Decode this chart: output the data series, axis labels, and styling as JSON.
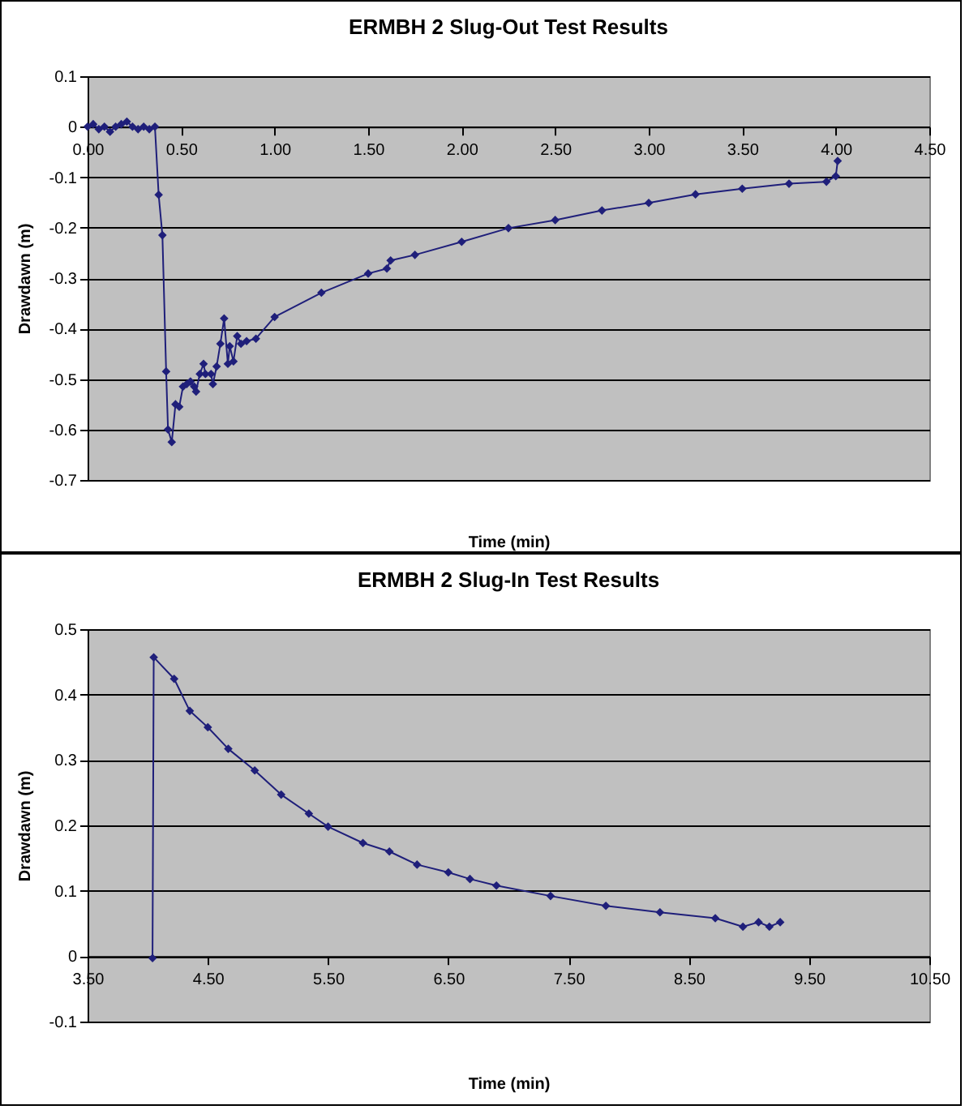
{
  "chart_data": [
    {
      "type": "line",
      "title": "ERMBH 2 Slug-Out Test Results",
      "xlabel": "Time (min)",
      "ylabel": "Drawdawn (m)",
      "x": [
        0,
        0.03,
        0.06,
        0.09,
        0.12,
        0.15,
        0.18,
        0.21,
        0.24,
        0.27,
        0.3,
        0.33,
        0.36,
        0.38,
        0.4,
        0.42,
        0.43,
        0.45,
        0.47,
        0.49,
        0.51,
        0.53,
        0.55,
        0.57,
        0.58,
        0.6,
        0.62,
        0.63,
        0.66,
        0.67,
        0.69,
        0.71,
        0.73,
        0.75,
        0.76,
        0.78,
        0.8,
        0.82,
        0.85,
        0.9,
        1.0,
        1.25,
        1.5,
        1.6,
        1.62,
        1.75,
        2.0,
        2.25,
        2.5,
        2.75,
        3.0,
        3.25,
        3.5,
        3.75,
        3.95,
        4.0,
        4.01
      ],
      "series": [
        {
          "color": "#1f1f7a",
          "values": [
            0.0,
            0.005,
            -0.005,
            0.0,
            -0.01,
            0.0,
            0.005,
            0.01,
            0.0,
            -0.005,
            0.0,
            -0.005,
            0.0,
            -0.135,
            -0.215,
            -0.485,
            -0.6,
            -0.625,
            -0.55,
            -0.555,
            -0.515,
            -0.51,
            -0.505,
            -0.515,
            -0.525,
            -0.49,
            -0.47,
            -0.49,
            -0.49,
            -0.51,
            -0.475,
            -0.43,
            -0.38,
            -0.47,
            -0.435,
            -0.465,
            -0.415,
            -0.43,
            -0.425,
            -0.42,
            -0.377,
            -0.329,
            -0.291,
            -0.281,
            -0.265,
            -0.254,
            -0.228,
            -0.201,
            -0.185,
            -0.166,
            -0.151,
            -0.134,
            -0.123,
            -0.113,
            -0.109,
            -0.098,
            -0.068
          ]
        }
      ],
      "xlim": [
        0,
        4.5
      ],
      "xticks": [
        {
          "value": 0,
          "label": "0.00"
        },
        {
          "value": 0.5,
          "label": "0.50"
        },
        {
          "value": 1,
          "label": "1.00"
        },
        {
          "value": 1.5,
          "label": "1.50"
        },
        {
          "value": 2,
          "label": "2.00"
        },
        {
          "value": 2.5,
          "label": "2.50"
        },
        {
          "value": 3,
          "label": "3.00"
        },
        {
          "value": 3.5,
          "label": "3.50"
        },
        {
          "value": 4,
          "label": "4.00"
        },
        {
          "value": 4.5,
          "label": "4.50"
        }
      ],
      "ylim": [
        -0.7,
        0.1
      ],
      "yticks": [
        -0.7,
        -0.6,
        -0.5,
        -0.4,
        -0.3,
        -0.2,
        -0.1,
        0,
        0.1
      ],
      "grid": "y",
      "marker": "diamond"
    },
    {
      "type": "line",
      "title": "ERMBH 2 Slug-In Test Results",
      "xlabel": "Time (min)",
      "ylabel": "Drawdawn (m)",
      "x": [
        4.04,
        4.05,
        4.22,
        4.35,
        4.5,
        4.67,
        4.89,
        5.11,
        5.34,
        5.5,
        5.79,
        6.01,
        6.24,
        6.5,
        6.68,
        6.9,
        7.35,
        7.81,
        8.26,
        8.72,
        8.95,
        9.08,
        9.17,
        9.26
      ],
      "series": [
        {
          "color": "#1f1f7a",
          "values": [
            -0.003,
            0.457,
            0.424,
            0.375,
            0.35,
            0.317,
            0.284,
            0.247,
            0.218,
            0.198,
            0.173,
            0.16,
            0.14,
            0.128,
            0.118,
            0.108,
            0.092,
            0.077,
            0.067,
            0.058,
            0.045,
            0.052,
            0.045,
            0.052
          ]
        }
      ],
      "xlim": [
        3.5,
        10.5
      ],
      "xticks": [
        {
          "value": 3.5,
          "label": "3.50"
        },
        {
          "value": 4.5,
          "label": "4.50"
        },
        {
          "value": 5.5,
          "label": "5.50"
        },
        {
          "value": 6.5,
          "label": "6.50"
        },
        {
          "value": 7.5,
          "label": "7.50"
        },
        {
          "value": 8.5,
          "label": "8.50"
        },
        {
          "value": 9.5,
          "label": "9.50"
        },
        {
          "value": 10.5,
          "label": "10.50"
        }
      ],
      "ylim": [
        -0.1,
        0.5
      ],
      "yticks": [
        -0.1,
        0,
        0.1,
        0.2,
        0.3,
        0.4,
        0.5
      ],
      "grid": "y",
      "marker": "diamond"
    }
  ]
}
